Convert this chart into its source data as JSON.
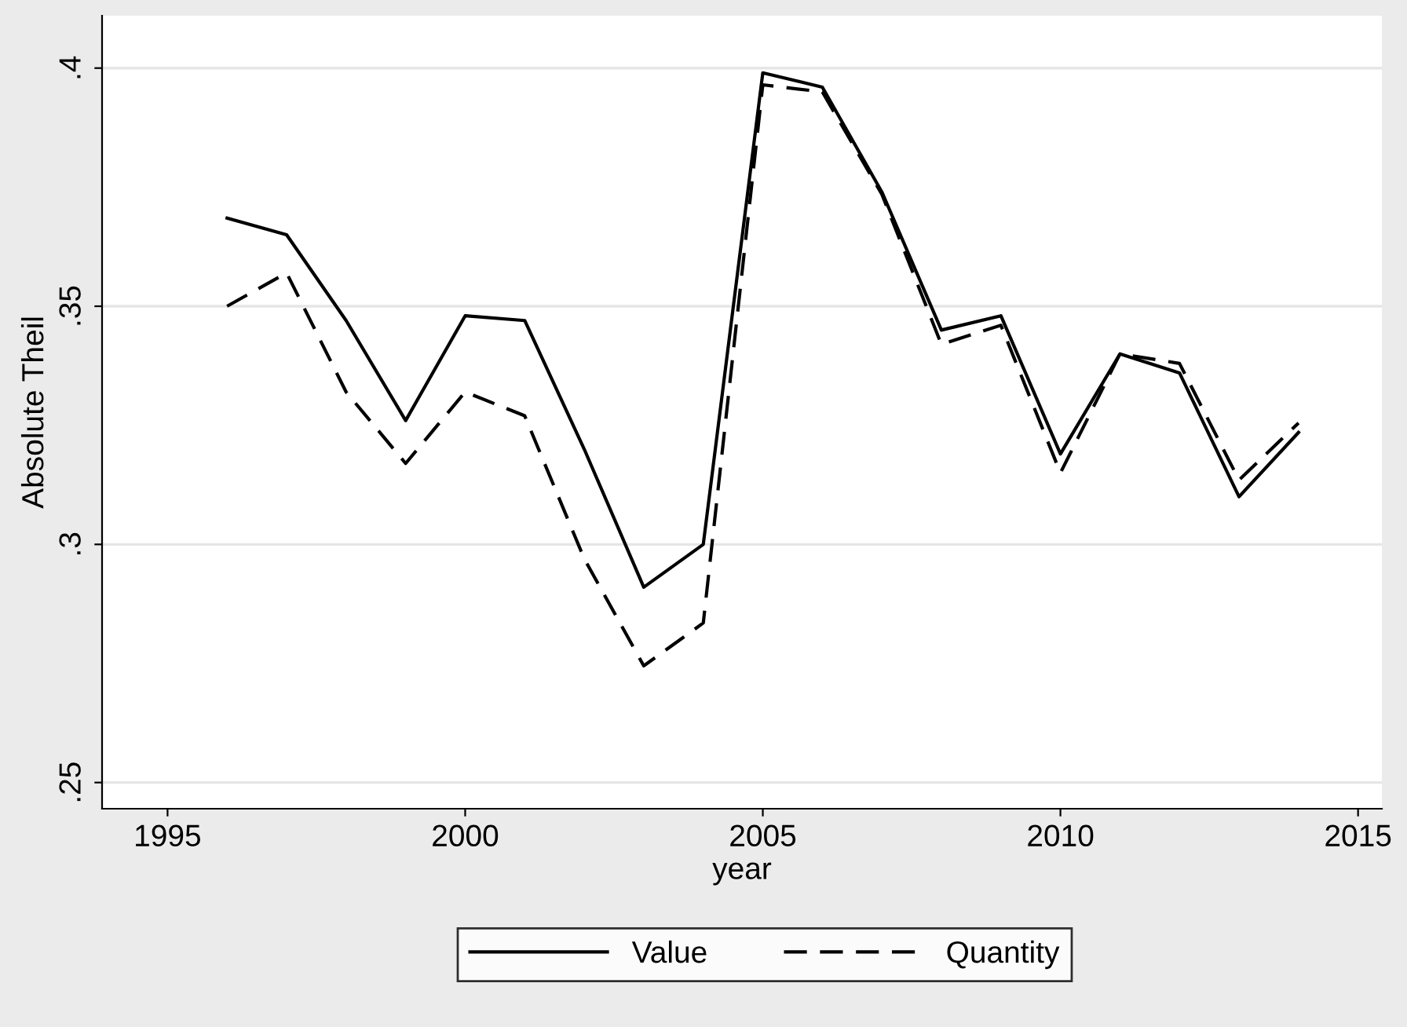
{
  "chart_data": {
    "type": "line",
    "xlabel": "year",
    "ylabel": "Absolute Theil",
    "x": [
      1996,
      1997,
      1998,
      1999,
      2000,
      2001,
      2002,
      2003,
      2004,
      2005,
      2006,
      2007,
      2008,
      2009,
      2010,
      2011,
      2012,
      2013,
      2014
    ],
    "series": [
      {
        "name": "Value",
        "color": "#000000",
        "line_style": "solid",
        "values": [
          0.3685,
          0.365,
          0.347,
          0.326,
          0.348,
          0.347,
          0.32,
          0.291,
          0.3,
          0.399,
          0.396,
          0.374,
          0.345,
          0.348,
          0.319,
          0.34,
          0.336,
          0.31,
          0.3235
        ]
      },
      {
        "name": "Quantity",
        "color": "#000000",
        "line_style": "dashed",
        "values": [
          0.35,
          0.357,
          0.332,
          0.317,
          0.332,
          0.327,
          0.297,
          0.2745,
          0.2835,
          0.3965,
          0.395,
          0.3735,
          0.342,
          0.346,
          0.315,
          0.34,
          0.338,
          0.3135,
          0.3255
        ]
      }
    ],
    "xlim": [
      1993.9,
      2015.4
    ],
    "ylim": [
      0.2445,
      0.411
    ],
    "xticks": [
      1995,
      2000,
      2005,
      2010,
      2015
    ],
    "yticks": [
      {
        "value": 0.25,
        "label": ".25"
      },
      {
        "value": 0.3,
        "label": ".3"
      },
      {
        "value": 0.35,
        "label": ".35"
      },
      {
        "value": 0.4,
        "label": ".4"
      }
    ],
    "grid": "y",
    "legend": "bottom",
    "marker": "none"
  }
}
